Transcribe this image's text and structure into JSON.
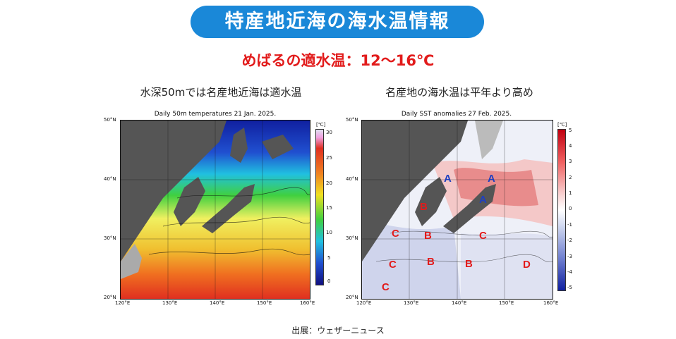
{
  "banner": {
    "title": "特産地近海の海水温情報"
  },
  "subheading": "めばるの適水温：12〜16℃",
  "left_panel": {
    "caption": "水深50mでは名産地近海は適水温",
    "title": "Daily 50m temperatures 21 Jan. 2025.",
    "unit": "[℃]",
    "colorbar_ticks": [
      "30",
      "25",
      "20",
      "15",
      "10",
      "5",
      "0"
    ],
    "lat_labels": [
      "50°N",
      "40°N",
      "30°N",
      "20°N"
    ],
    "lon_labels": [
      "120°E",
      "130°E",
      "140°E",
      "150°E",
      "160°E"
    ],
    "colors": {
      "cold": "#2030c0",
      "cool": "#20b0e0",
      "mid": "#40d040",
      "warm": "#f0e020",
      "hot": "#f08020",
      "veryhot": "#e03020",
      "land": "#555555",
      "ice": "#bbbbbb"
    }
  },
  "right_panel": {
    "caption": "名産地の海水温は平年より高め",
    "title": "Daily SST anomalies 27 Feb. 2025.",
    "unit": "[℃]",
    "colorbar_ticks": [
      "5",
      "4",
      "3",
      "2",
      "1",
      "0",
      "-1",
      "-2",
      "-3",
      "-4",
      "-5"
    ],
    "lat_labels": [
      "50°N",
      "40°N",
      "30°N",
      "20°N"
    ],
    "lon_labels": [
      "120°E",
      "130°E",
      "140°E",
      "150°E",
      "160°E"
    ],
    "markers": [
      "A",
      "A",
      "A",
      "B",
      "B",
      "B",
      "B",
      "C",
      "C",
      "C",
      "C",
      "D"
    ],
    "colors": {
      "warm": "#e05050",
      "cool": "#4050c0",
      "land": "#555555",
      "marker": "#e21b1b",
      "marker_blue": "#2040c0"
    }
  },
  "source": "出展：ウェザーニュース"
}
